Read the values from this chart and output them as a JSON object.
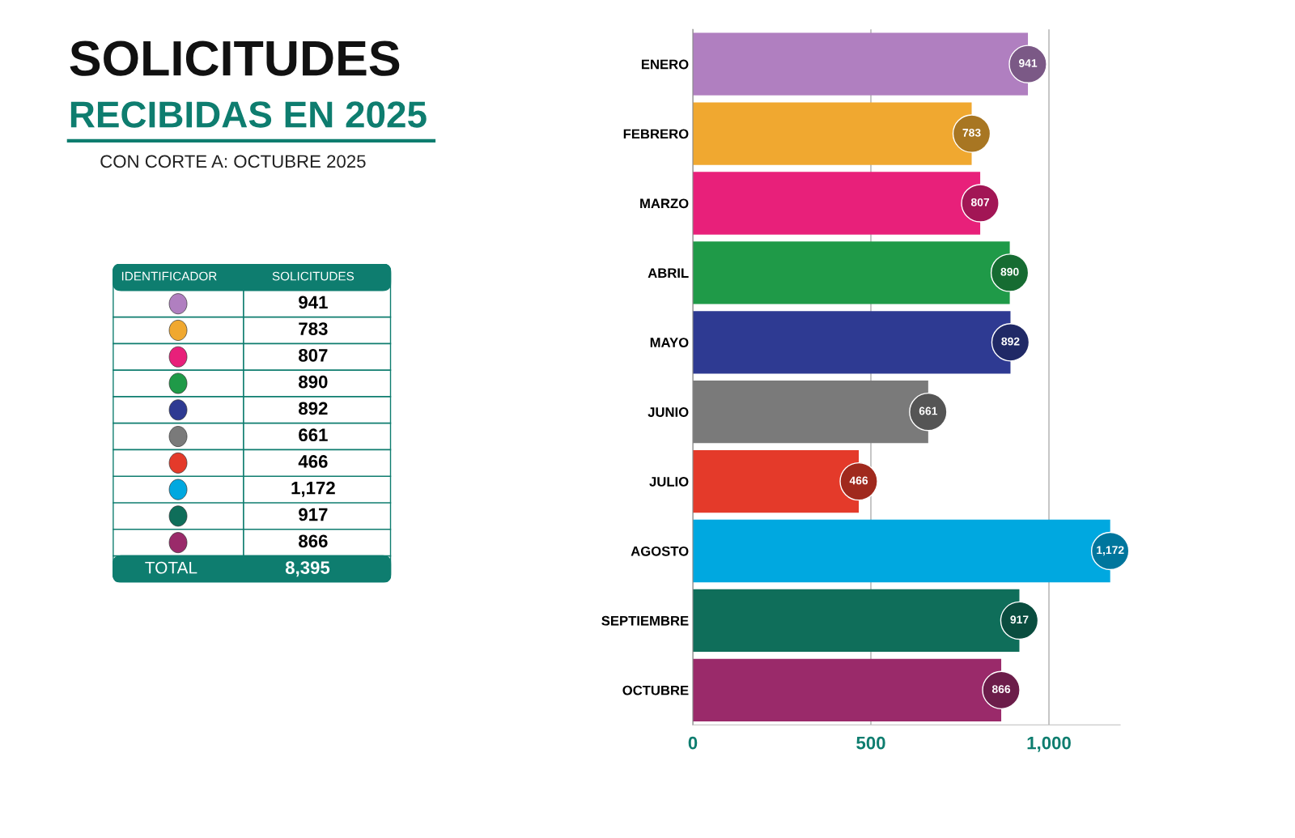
{
  "chart_data": [
    {
      "type": "bar",
      "orientation": "horizontal",
      "title": "SOLICITUDES",
      "subtitle": "RECIBIDAS EN 2025",
      "annotations": [
        "CON CORTE A: OCTUBRE 2025"
      ],
      "categories": [
        "ENERO",
        "FEBRERO",
        "MARZO",
        "ABRIL",
        "MAYO",
        "JUNIO",
        "JULIO",
        "AGOSTO",
        "SEPTIEMBRE",
        "OCTUBRE"
      ],
      "values": [
        941,
        783,
        807,
        890,
        892,
        661,
        466,
        1172,
        917,
        866
      ],
      "value_labels": [
        "941",
        "783",
        "807",
        "890",
        "892",
        "661",
        "466",
        "1,172",
        "917",
        "866"
      ],
      "colors": [
        "#b07fc0",
        "#f0a830",
        "#e8207a",
        "#1f9a48",
        "#2e3a92",
        "#7a7a7a",
        "#e43a2a",
        "#00a8e0",
        "#0f6e5a",
        "#9a2a6a"
      ],
      "xlim": [
        0,
        1200
      ],
      "xticks": [
        0,
        500,
        {
          "value": 1000,
          "label": "1,000"
        }
      ],
      "grid": "x"
    },
    {
      "type": "other",
      "annotations": [
        "IDENTIFICADOR",
        "SOLICITUDES",
        "941",
        "783",
        "807",
        "890",
        "892",
        "661",
        "466",
        "1,172",
        "917",
        "866",
        "TOTAL",
        "8,395"
      ]
    }
  ]
}
